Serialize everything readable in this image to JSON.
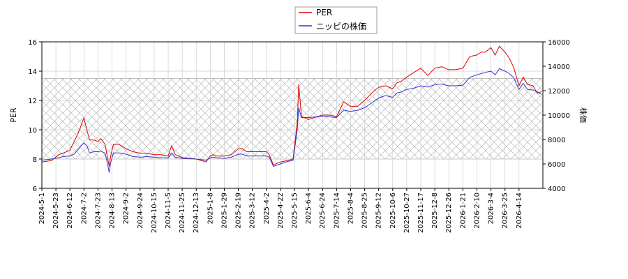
{
  "chart_data": {
    "type": "line",
    "title": "",
    "legend": {
      "placement": "top-center"
    },
    "grid": true,
    "band": {
      "y_from": 8,
      "y_to": 13.5,
      "pattern": "crosshatch"
    },
    "x_tick_labels": [
      "2024-5-1",
      "2024-5-23",
      "2024-6-12",
      "2024-7-2",
      "2024-7-23",
      "2024-8-13",
      "2024-9-2",
      "2024-9-24",
      "2024-10-15",
      "2024-11-5",
      "2024-11-25",
      "2024-12-13",
      "2025-1-8",
      "2025-1-29",
      "2025-2-19",
      "2025-3-12",
      "2025-4-2",
      "2025-4-22",
      "2025-5-15",
      "2025-6-4",
      "2025-6-24",
      "2025-7-14",
      "2025-8-4",
      "2025-8-25",
      "2025-9-12",
      "2025-10-6",
      "2025-10-27",
      "2025-11-17",
      "2025-12-8",
      "2025-12-26",
      "2026-1-21",
      "2026-2-10",
      "2026-3-4",
      "2026-3-25",
      "2026-4-14"
    ],
    "xlim": [
      0,
      35.7
    ],
    "left_axis": {
      "label": "PER",
      "ylim": [
        6,
        16
      ],
      "ticks": [
        6,
        8,
        10,
        12,
        14,
        16
      ]
    },
    "right_axis": {
      "label": "株価",
      "ylim": [
        4000,
        16000
      ],
      "ticks": [
        4000,
        6000,
        8000,
        10000,
        12000,
        14000,
        16000
      ]
    },
    "series": [
      {
        "name": "PER",
        "axis": "left",
        "color": "#dd0000",
        "x": [
          0,
          0.7,
          1.2,
          1.5,
          2.0,
          2.3,
          2.6,
          2.8,
          3.0,
          3.2,
          3.4,
          3.7,
          4.0,
          4.2,
          4.5,
          4.7,
          4.8,
          4.9,
          5.1,
          5.5,
          6.0,
          6.5,
          7.0,
          7.5,
          8.0,
          8.5,
          9.0,
          9.1,
          9.25,
          9.5,
          10,
          11,
          11.7,
          12,
          12.2,
          12.5,
          13,
          13.5,
          14,
          14.3,
          14.6,
          15,
          16,
          16.2,
          16.5,
          17,
          17.5,
          17.9,
          18.2,
          18.3,
          18.5,
          19,
          20,
          20.5,
          21,
          21.5,
          22,
          22.5,
          23,
          23.5,
          24,
          24.5,
          25,
          25.3,
          25.6,
          26,
          26.5,
          27,
          27.5,
          28,
          28.5,
          29,
          29.5,
          30,
          30.5,
          31,
          31.3,
          31.6,
          32,
          32.3,
          32.6,
          33,
          33.3,
          33.6,
          34,
          34.3,
          34.6,
          35,
          35.3,
          35.6
        ],
        "y": [
          7.8,
          7.9,
          8.3,
          8.4,
          8.6,
          9.2,
          9.8,
          10.3,
          10.8,
          10.0,
          9.3,
          9.3,
          9.2,
          9.4,
          9.0,
          8.0,
          7.5,
          8.2,
          9.0,
          9.0,
          8.7,
          8.5,
          8.4,
          8.4,
          8.3,
          8.3,
          8.2,
          8.5,
          8.9,
          8.3,
          8.1,
          8.0,
          7.8,
          8.2,
          8.3,
          8.2,
          8.2,
          8.3,
          8.7,
          8.7,
          8.5,
          8.5,
          8.5,
          8.3,
          7.6,
          7.8,
          7.9,
          8.0,
          10.5,
          13.1,
          10.9,
          10.7,
          11.0,
          11.0,
          10.9,
          11.9,
          11.6,
          11.6,
          12.0,
          12.5,
          12.9,
          13.0,
          12.8,
          13.2,
          13.3,
          13.6,
          13.9,
          14.2,
          13.7,
          14.2,
          14.3,
          14.1,
          14.1,
          14.2,
          15.0,
          15.1,
          15.3,
          15.3,
          15.6,
          15.1,
          15.7,
          15.3,
          14.9,
          14.3,
          13.0,
          13.6,
          13.1,
          13.0,
          12.5,
          12.6
        ]
      },
      {
        "name": "ニッピの株価",
        "axis": "right",
        "color": "#3333cc",
        "x": [
          0,
          0.7,
          1.2,
          1.5,
          2.0,
          2.3,
          2.6,
          2.8,
          3.0,
          3.2,
          3.4,
          3.7,
          4.0,
          4.2,
          4.5,
          4.7,
          4.8,
          4.9,
          5.1,
          5.5,
          6.0,
          6.5,
          7.0,
          7.5,
          8.0,
          8.5,
          9.0,
          9.1,
          9.25,
          9.5,
          10,
          11,
          11.7,
          12,
          12.2,
          12.5,
          13,
          13.5,
          14,
          14.3,
          14.6,
          15,
          16,
          16.2,
          16.5,
          17,
          17.5,
          17.9,
          18.2,
          18.3,
          18.5,
          19,
          20,
          20.5,
          21,
          21.5,
          22,
          22.5,
          23,
          23.5,
          24,
          24.5,
          25,
          25.3,
          25.6,
          26,
          26.5,
          27,
          27.5,
          28,
          28.5,
          29,
          29.5,
          30,
          30.5,
          31,
          31.3,
          31.6,
          32,
          32.3,
          32.6,
          33,
          33.3,
          33.6,
          34,
          34.3,
          34.6,
          35,
          35.3,
          35.6
        ],
        "y": [
          6300,
          6400,
          6500,
          6600,
          6650,
          6800,
          7200,
          7500,
          7700,
          7500,
          6900,
          7000,
          7000,
          7050,
          6900,
          5900,
          5300,
          6100,
          6900,
          6900,
          6800,
          6600,
          6550,
          6600,
          6550,
          6500,
          6500,
          6650,
          6900,
          6550,
          6450,
          6400,
          6300,
          6500,
          6550,
          6500,
          6450,
          6550,
          6800,
          6800,
          6650,
          6650,
          6650,
          6550,
          5800,
          6000,
          6200,
          6300,
          8800,
          10600,
          9800,
          9800,
          9900,
          9850,
          9800,
          10400,
          10300,
          10400,
          10600,
          11000,
          11400,
          11600,
          11450,
          11800,
          11900,
          12100,
          12200,
          12400,
          12300,
          12500,
          12550,
          12400,
          12400,
          12450,
          13100,
          13300,
          13400,
          13500,
          13600,
          13300,
          13800,
          13600,
          13400,
          13100,
          12100,
          12600,
          12100,
          12050,
          11900,
          11700
        ]
      }
    ]
  }
}
